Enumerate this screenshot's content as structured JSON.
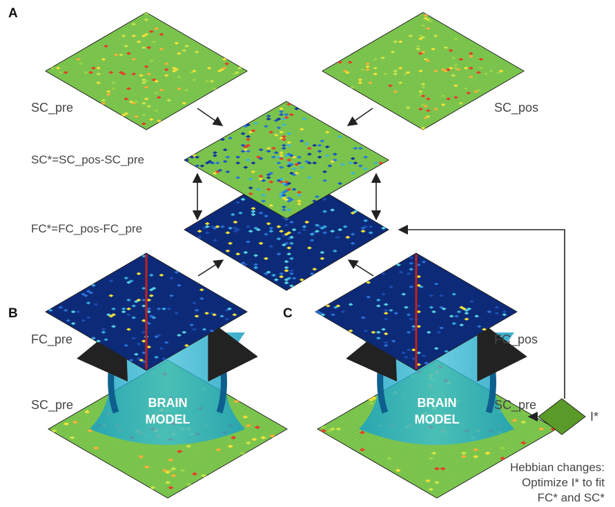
{
  "panels": {
    "a": "A",
    "b": "B",
    "c": "C"
  },
  "labels": {
    "sc_pre_top": "SC_pre",
    "sc_pos_top": "SC_pos",
    "sc_star": "SC*=SC_pos-SC_pre",
    "fc_star": "FC*=FC_pos-FC_pre",
    "fc_pre": "FC_pre",
    "sc_pre_b": "SC_pre",
    "fc_pos": "FC_pos",
    "sc_pre_c": "SC_pre",
    "i_star": "I*"
  },
  "model": {
    "line1": "BRAIN",
    "line2": "MODEL"
  },
  "note": {
    "line1": "Hebbian changes:",
    "line2": "Optimize I* to fit",
    "line3": "FC* and SC*"
  },
  "colors": {
    "sc_base": "#7cc64e",
    "fc_base": "#0d2b7a",
    "model_fill": "#23a8c8",
    "i_star_fill": "#5a9a28",
    "arrow": "#222222"
  }
}
